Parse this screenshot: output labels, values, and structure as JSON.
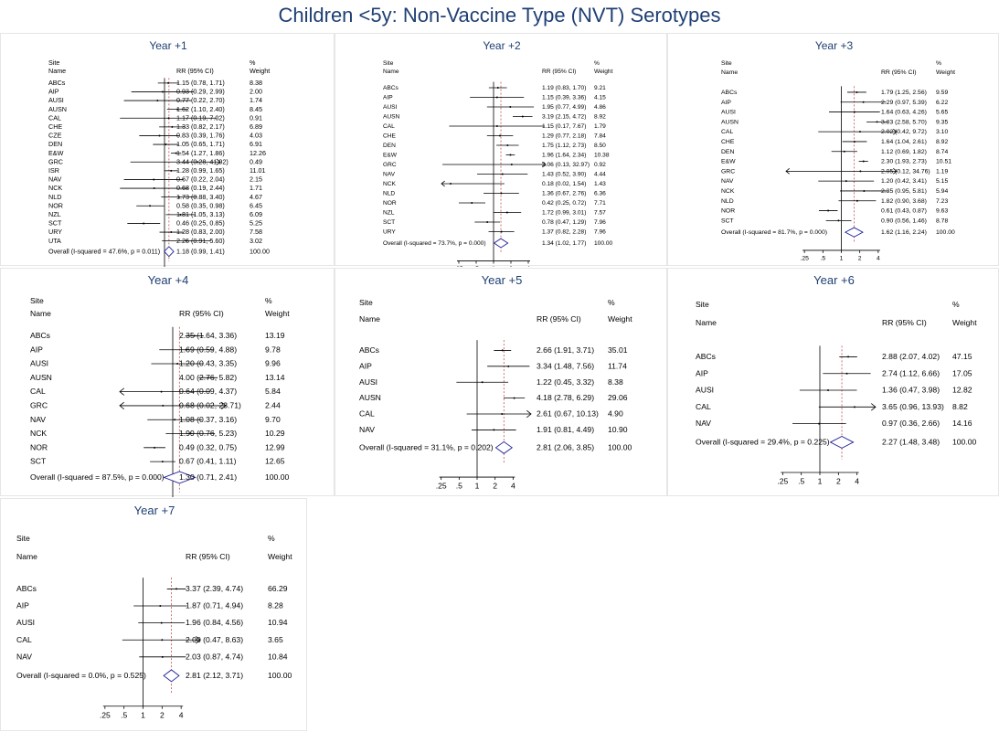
{
  "title": "Children <5y: Non-Vaccine Type (NVT) Serotypes",
  "colors": {
    "title": "#1e3f73",
    "diamond": "#1f1f9a",
    "dash": "#c0504d",
    "axis": "#000000"
  },
  "headers": {
    "site": "Site",
    "name": "Name",
    "rr": "RR (95% CI)",
    "pct": "%",
    "weight": "Weight"
  },
  "xticks": [
    0.25,
    0.5,
    1,
    2,
    4
  ],
  "xtick_labels": [
    ".25",
    ".5",
    "1",
    "2",
    "4"
  ],
  "chart_data": [
    {
      "type": "forest",
      "title": "Year +1",
      "x_scale": "log",
      "xlim": [
        0.125,
        8
      ],
      "rows": [
        {
          "site": "ABCs",
          "rr": 1.15,
          "lo": 0.78,
          "hi": 1.71,
          "label": "1.15 (0.78, 1.71)",
          "weight": "8.38"
        },
        {
          "site": "AIP",
          "rr": 0.93,
          "lo": 0.29,
          "hi": 2.99,
          "label": "0.93 (0.29, 2.99)",
          "weight": "2.00"
        },
        {
          "site": "AUSI",
          "rr": 0.77,
          "lo": 0.22,
          "hi": 2.7,
          "label": "0.77 (0.22, 2.70)",
          "weight": "1.74"
        },
        {
          "site": "AUSN",
          "rr": 1.62,
          "lo": 1.1,
          "hi": 2.4,
          "label": "1.62 (1.10, 2.40)",
          "weight": "8.45"
        },
        {
          "site": "CAL",
          "rr": 1.17,
          "lo": 0.19,
          "hi": 7.02,
          "label": "1.17 (0.19, 7.02)",
          "weight": "0.91"
        },
        {
          "site": "CHE",
          "rr": 1.33,
          "lo": 0.82,
          "hi": 2.17,
          "label": "1.33 (0.82, 2.17)",
          "weight": "6.89"
        },
        {
          "site": "CZE",
          "rr": 0.83,
          "lo": 0.39,
          "hi": 1.76,
          "label": "0.83 (0.39, 1.76)",
          "weight": "4.03"
        },
        {
          "site": "DEN",
          "rr": 1.05,
          "lo": 0.65,
          "hi": 1.71,
          "label": "1.05 (0.65, 1.71)",
          "weight": "6.91"
        },
        {
          "site": "E&W",
          "rr": 1.54,
          "lo": 1.27,
          "hi": 1.86,
          "label": "1.54 (1.27, 1.86)",
          "weight": "12.26"
        },
        {
          "site": "GRC",
          "rr": 3.44,
          "lo": 0.28,
          "hi": 41.92,
          "label": "3.44 (0.28, 41.92)",
          "weight": "0.49"
        },
        {
          "site": "ISR",
          "rr": 1.28,
          "lo": 0.99,
          "hi": 1.65,
          "label": "1.28 (0.99, 1.65)",
          "weight": "11.01"
        },
        {
          "site": "NAV",
          "rr": 0.67,
          "lo": 0.22,
          "hi": 2.04,
          "label": "0.67 (0.22, 2.04)",
          "weight": "2.15"
        },
        {
          "site": "NCK",
          "rr": 0.68,
          "lo": 0.19,
          "hi": 2.44,
          "label": "0.68 (0.19, 2.44)",
          "weight": "1.71"
        },
        {
          "site": "NLD",
          "rr": 1.73,
          "lo": 0.88,
          "hi": 3.4,
          "label": "1.73 (0.88, 3.40)",
          "weight": "4.67"
        },
        {
          "site": "NOR",
          "rr": 0.58,
          "lo": 0.35,
          "hi": 0.98,
          "label": "0.58 (0.35, 0.98)",
          "weight": "6.45"
        },
        {
          "site": "NZL",
          "rr": 1.81,
          "lo": 1.05,
          "hi": 3.13,
          "label": "1.81 (1.05, 3.13)",
          "weight": "6.09"
        },
        {
          "site": "SCT",
          "rr": 0.46,
          "lo": 0.25,
          "hi": 0.85,
          "label": "0.46 (0.25, 0.85)",
          "weight": "5.25"
        },
        {
          "site": "URY",
          "rr": 1.28,
          "lo": 0.83,
          "hi": 2.0,
          "label": "1.28 (0.83, 2.00)",
          "weight": "7.58"
        },
        {
          "site": "UTA",
          "rr": 2.26,
          "lo": 0.91,
          "hi": 5.6,
          "label": "2.26 (0.91, 5.60)",
          "weight": "3.02"
        }
      ],
      "overall": {
        "text": "Overall  (I-squared = 47.6%, p = 0.011)",
        "rr": 1.18,
        "lo": 0.99,
        "hi": 1.41,
        "label": "1.18 (0.99, 1.41)",
        "weight": "100.00"
      }
    },
    {
      "type": "forest",
      "title": "Year +2",
      "x_scale": "log",
      "xlim": [
        0.125,
        8
      ],
      "rows": [
        {
          "site": "ABCs",
          "rr": 1.19,
          "lo": 0.83,
          "hi": 1.7,
          "label": "1.19 (0.83, 1.70)",
          "weight": "9.21"
        },
        {
          "site": "AIP",
          "rr": 1.15,
          "lo": 0.39,
          "hi": 3.36,
          "label": "1.15 (0.39, 3.36)",
          "weight": "4.15"
        },
        {
          "site": "AUSI",
          "rr": 1.95,
          "lo": 0.77,
          "hi": 4.99,
          "label": "1.95 (0.77, 4.99)",
          "weight": "4.86"
        },
        {
          "site": "AUSN",
          "rr": 3.19,
          "lo": 2.15,
          "hi": 4.72,
          "label": "3.19 (2.15, 4.72)",
          "weight": "8.92"
        },
        {
          "site": "CAL",
          "rr": 1.15,
          "lo": 0.17,
          "hi": 7.67,
          "label": "1.15 (0.17, 7.67)",
          "weight": "1.79"
        },
        {
          "site": "CHE",
          "rr": 1.29,
          "lo": 0.77,
          "hi": 2.18,
          "label": "1.29 (0.77, 2.18)",
          "weight": "7.84"
        },
        {
          "site": "DEN",
          "rr": 1.75,
          "lo": 1.12,
          "hi": 2.73,
          "label": "1.75 (1.12, 2.73)",
          "weight": "8.50"
        },
        {
          "site": "E&W",
          "rr": 1.96,
          "lo": 1.64,
          "hi": 2.34,
          "label": "1.96 (1.64, 2.34)",
          "weight": "10.38"
        },
        {
          "site": "GRC",
          "rr": 2.06,
          "lo": 0.13,
          "hi": 32.97,
          "label": "2.06 (0.13, 32.97)",
          "weight": "0.92"
        },
        {
          "site": "NAV",
          "rr": 1.43,
          "lo": 0.52,
          "hi": 3.9,
          "label": "1.43 (0.52, 3.90)",
          "weight": "4.44"
        },
        {
          "site": "NCK",
          "rr": 0.18,
          "lo": 0.02,
          "hi": 1.54,
          "label": "0.18 (0.02, 1.54)",
          "weight": "1.43"
        },
        {
          "site": "NLD",
          "rr": 1.36,
          "lo": 0.67,
          "hi": 2.76,
          "label": "1.36 (0.67, 2.76)",
          "weight": "6.36"
        },
        {
          "site": "NOR",
          "rr": 0.42,
          "lo": 0.25,
          "hi": 0.72,
          "label": "0.42 (0.25, 0.72)",
          "weight": "7.71"
        },
        {
          "site": "NZL",
          "rr": 1.72,
          "lo": 0.99,
          "hi": 3.01,
          "label": "1.72 (0.99, 3.01)",
          "weight": "7.57"
        },
        {
          "site": "SCT",
          "rr": 0.78,
          "lo": 0.47,
          "hi": 1.29,
          "label": "0.78 (0.47, 1.29)",
          "weight": "7.96"
        },
        {
          "site": "URY",
          "rr": 1.37,
          "lo": 0.82,
          "hi": 2.28,
          "label": "1.37 (0.82, 2.28)",
          "weight": "7.96"
        }
      ],
      "overall": {
        "text": "Overall  (I-squared = 73.7%, p = 0.000)",
        "rr": 1.34,
        "lo": 1.02,
        "hi": 1.77,
        "label": "1.34 (1.02, 1.77)",
        "weight": "100.00"
      }
    },
    {
      "type": "forest",
      "title": "Year +3",
      "x_scale": "log",
      "xlim": [
        0.125,
        8
      ],
      "rows": [
        {
          "site": "ABCs",
          "rr": 1.79,
          "lo": 1.25,
          "hi": 2.56,
          "label": "1.79 (1.25, 2.56)",
          "weight": "9.59"
        },
        {
          "site": "AIP",
          "rr": 2.29,
          "lo": 0.97,
          "hi": 5.39,
          "label": "2.29 (0.97, 5.39)",
          "weight": "6.22"
        },
        {
          "site": "AUSI",
          "rr": 1.64,
          "lo": 0.63,
          "hi": 4.26,
          "label": "1.64 (0.63, 4.26)",
          "weight": "5.65"
        },
        {
          "site": "AUSN",
          "rr": 3.83,
          "lo": 2.58,
          "hi": 5.7,
          "label": "3.83 (2.58, 5.70)",
          "weight": "9.35"
        },
        {
          "site": "CAL",
          "rr": 2.02,
          "lo": 0.42,
          "hi": 9.72,
          "label": "2.02 (0.42, 9.72)",
          "weight": "3.10"
        },
        {
          "site": "CHE",
          "rr": 1.64,
          "lo": 1.04,
          "hi": 2.61,
          "label": "1.64 (1.04, 2.61)",
          "weight": "8.92"
        },
        {
          "site": "DEN",
          "rr": 1.12,
          "lo": 0.69,
          "hi": 1.82,
          "label": "1.12 (0.69, 1.82)",
          "weight": "8.74"
        },
        {
          "site": "E&W",
          "rr": 2.3,
          "lo": 1.93,
          "hi": 2.73,
          "label": "2.30 (1.93, 2.73)",
          "weight": "10.51"
        },
        {
          "site": "GRC",
          "rr": 2.05,
          "lo": 0.12,
          "hi": 34.76,
          "label": "2.05 (0.12, 34.76)",
          "weight": "1.19"
        },
        {
          "site": "NAV",
          "rr": 1.2,
          "lo": 0.42,
          "hi": 3.41,
          "label": "1.20 (0.42, 3.41)",
          "weight": "5.15"
        },
        {
          "site": "NCK",
          "rr": 2.35,
          "lo": 0.95,
          "hi": 5.81,
          "label": "2.35 (0.95, 5.81)",
          "weight": "5.94"
        },
        {
          "site": "NLD",
          "rr": 1.82,
          "lo": 0.9,
          "hi": 3.68,
          "label": "1.82 (0.90, 3.68)",
          "weight": "7.23"
        },
        {
          "site": "NOR",
          "rr": 0.61,
          "lo": 0.43,
          "hi": 0.87,
          "label": "0.61 (0.43, 0.87)",
          "weight": "9.63"
        },
        {
          "site": "SCT",
          "rr": 0.9,
          "lo": 0.56,
          "hi": 1.46,
          "label": "0.90 (0.56, 1.46)",
          "weight": "8.78"
        }
      ],
      "overall": {
        "text": "Overall  (I-squared = 81.7%, p = 0.000)",
        "rr": 1.62,
        "lo": 1.16,
        "hi": 2.24,
        "label": "1.62 (1.16, 2.24)",
        "weight": "100.00"
      }
    },
    {
      "type": "forest",
      "title": "Year +4",
      "x_scale": "log",
      "xlim": [
        0.125,
        8
      ],
      "rows": [
        {
          "site": "ABCs",
          "rr": 2.35,
          "lo": 1.64,
          "hi": 3.36,
          "label": "2.35 (1.64, 3.36)",
          "weight": "13.19"
        },
        {
          "site": "AIP",
          "rr": 1.69,
          "lo": 0.59,
          "hi": 4.88,
          "label": "1.69 (0.59, 4.88)",
          "weight": "9.78"
        },
        {
          "site": "AUSI",
          "rr": 1.2,
          "lo": 0.43,
          "hi": 3.35,
          "label": "1.20 (0.43, 3.35)",
          "weight": "9.96"
        },
        {
          "site": "AUSN",
          "rr": 4.0,
          "lo": 2.76,
          "hi": 5.82,
          "label": "4.00 (2.76, 5.82)",
          "weight": "13.14"
        },
        {
          "site": "CAL",
          "rr": 0.64,
          "lo": 0.09,
          "hi": 4.37,
          "label": "0.64 (0.09, 4.37)",
          "weight": "5.84"
        },
        {
          "site": "GRC",
          "rr": 0.68,
          "lo": 0.02,
          "hi": 23.71,
          "label": "0.68 (0.02, 23.71)",
          "weight": "2.44"
        },
        {
          "site": "NAV",
          "rr": 1.08,
          "lo": 0.37,
          "hi": 3.16,
          "label": "1.08 (0.37, 3.16)",
          "weight": "9.70"
        },
        {
          "site": "NCK",
          "rr": 1.99,
          "lo": 0.76,
          "hi": 5.23,
          "label": "1.99 (0.76, 5.23)",
          "weight": "10.29"
        },
        {
          "site": "NOR",
          "rr": 0.49,
          "lo": 0.32,
          "hi": 0.75,
          "label": "0.49 (0.32, 0.75)",
          "weight": "12.99"
        },
        {
          "site": "SCT",
          "rr": 0.67,
          "lo": 0.41,
          "hi": 1.11,
          "label": "0.67 (0.41, 1.11)",
          "weight": "12.65"
        }
      ],
      "overall": {
        "text": "Overall  (I-squared = 87.5%, p = 0.000)",
        "rr": 1.3,
        "lo": 0.71,
        "hi": 2.41,
        "label": "1.30 (0.71, 2.41)",
        "weight": "100.00"
      }
    },
    {
      "type": "forest",
      "title": "Year +5",
      "x_scale": "log",
      "xlim": [
        0.125,
        8
      ],
      "rows": [
        {
          "site": "ABCs",
          "rr": 2.66,
          "lo": 1.91,
          "hi": 3.71,
          "label": "2.66 (1.91, 3.71)",
          "weight": "35.01"
        },
        {
          "site": "AIP",
          "rr": 3.34,
          "lo": 1.48,
          "hi": 7.56,
          "label": "3.34 (1.48, 7.56)",
          "weight": "11.74"
        },
        {
          "site": "AUSI",
          "rr": 1.22,
          "lo": 0.45,
          "hi": 3.32,
          "label": "1.22 (0.45, 3.32)",
          "weight": "8.38"
        },
        {
          "site": "AUSN",
          "rr": 4.18,
          "lo": 2.78,
          "hi": 6.29,
          "label": "4.18 (2.78, 6.29)",
          "weight": "29.06"
        },
        {
          "site": "CAL",
          "rr": 2.61,
          "lo": 0.67,
          "hi": 10.13,
          "label": "2.61 (0.67, 10.13)",
          "weight": "4.90"
        },
        {
          "site": "NAV",
          "rr": 1.91,
          "lo": 0.81,
          "hi": 4.49,
          "label": "1.91 (0.81, 4.49)",
          "weight": "10.90"
        }
      ],
      "overall": {
        "text": "Overall  (I-squared = 31.1%, p = 0.202)",
        "rr": 2.81,
        "lo": 2.06,
        "hi": 3.85,
        "label": "2.81 (2.06, 3.85)",
        "weight": "100.00"
      }
    },
    {
      "type": "forest",
      "title": "Year +6",
      "x_scale": "log",
      "xlim": [
        0.125,
        8
      ],
      "rows": [
        {
          "site": "ABCs",
          "rr": 2.88,
          "lo": 2.07,
          "hi": 4.02,
          "label": "2.88 (2.07, 4.02)",
          "weight": "47.15"
        },
        {
          "site": "AIP",
          "rr": 2.74,
          "lo": 1.12,
          "hi": 6.66,
          "label": "2.74 (1.12, 6.66)",
          "weight": "17.05"
        },
        {
          "site": "AUSI",
          "rr": 1.36,
          "lo": 0.47,
          "hi": 3.98,
          "label": "1.36 (0.47, 3.98)",
          "weight": "12.82"
        },
        {
          "site": "CAL",
          "rr": 3.65,
          "lo": 0.96,
          "hi": 13.93,
          "label": "3.65 (0.96, 13.93)",
          "weight": "8.82"
        },
        {
          "site": "NAV",
          "rr": 0.97,
          "lo": 0.36,
          "hi": 2.66,
          "label": "0.97 (0.36, 2.66)",
          "weight": "14.16"
        }
      ],
      "overall": {
        "text": "Overall  (I-squared = 29.4%, p = 0.225)",
        "rr": 2.27,
        "lo": 1.48,
        "hi": 3.48,
        "label": "2.27 (1.48, 3.48)",
        "weight": "100.00"
      }
    },
    {
      "type": "forest",
      "title": "Year +7",
      "x_scale": "log",
      "xlim": [
        0.125,
        8
      ],
      "rows": [
        {
          "site": "ABCs",
          "rr": 3.37,
          "lo": 2.39,
          "hi": 4.74,
          "label": "3.37 (2.39, 4.74)",
          "weight": "66.29"
        },
        {
          "site": "AIP",
          "rr": 1.87,
          "lo": 0.71,
          "hi": 4.94,
          "label": "1.87 (0.71, 4.94)",
          "weight": "8.28"
        },
        {
          "site": "AUSI",
          "rr": 1.96,
          "lo": 0.84,
          "hi": 4.56,
          "label": "1.96 (0.84, 4.56)",
          "weight": "10.94"
        },
        {
          "site": "CAL",
          "rr": 2.0,
          "lo": 0.47,
          "hi": 8.63,
          "label": "2.00 (0.47, 8.63)",
          "weight": "3.65"
        },
        {
          "site": "NAV",
          "rr": 2.03,
          "lo": 0.87,
          "hi": 4.74,
          "label": "2.03 (0.87, 4.74)",
          "weight": "10.84"
        }
      ],
      "overall": {
        "text": "Overall  (I-squared = 0.0%, p = 0.525)",
        "rr": 2.81,
        "lo": 2.12,
        "hi": 3.71,
        "label": "2.81 (2.12, 3.71)",
        "weight": "100.00"
      }
    }
  ]
}
